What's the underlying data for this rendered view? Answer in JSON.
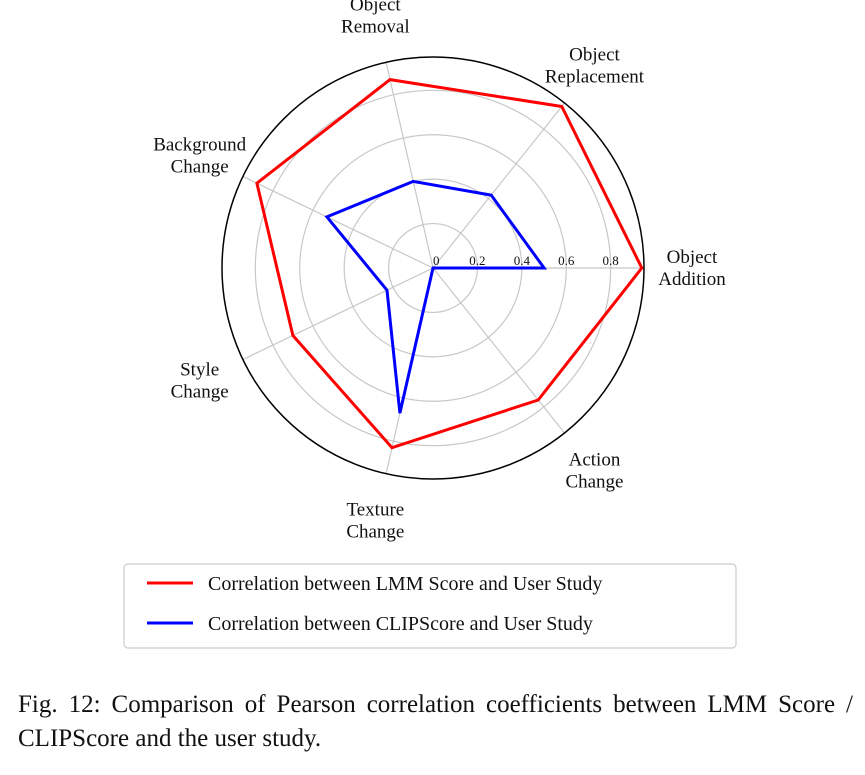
{
  "chart_data": {
    "type": "radar",
    "categories": [
      "Object Addition",
      "Object Replacement",
      "Object Removal",
      "Background Change",
      "Style Change",
      "Texture Change",
      "Action Change"
    ],
    "category_labels": [
      [
        "Object",
        "Addition"
      ],
      [
        "Object",
        "Replacement"
      ],
      [
        "Object",
        "Removal"
      ],
      [
        "Background",
        "Change"
      ],
      [
        "Style",
        "Change"
      ],
      [
        "Texture",
        "Change"
      ],
      [
        "Action",
        "Change"
      ]
    ],
    "radial_range": [
      0,
      0.95
    ],
    "radial_ticks": [
      0,
      0.2,
      0.4,
      0.6,
      0.8
    ],
    "radial_tick_labels": [
      "0",
      "0.2",
      "0.4",
      "0.6",
      "0.8"
    ],
    "grid": true,
    "series": [
      {
        "name": "Correlation between LMM Score and User Study",
        "color": "#ff0000",
        "values": [
          0.94,
          0.93,
          0.87,
          0.88,
          0.7,
          0.83,
          0.76
        ]
      },
      {
        "name": "Correlation between CLIPScore and User Study",
        "color": "#0000ff",
        "values": [
          0.5,
          0.42,
          0.4,
          0.53,
          0.23,
          0.67,
          0.0
        ]
      }
    ],
    "legend_position": "bottom-center"
  },
  "caption": "Fig. 12: Comparison of Pearson correlation coefficients between LMM Score / CLIPScore and the user study."
}
